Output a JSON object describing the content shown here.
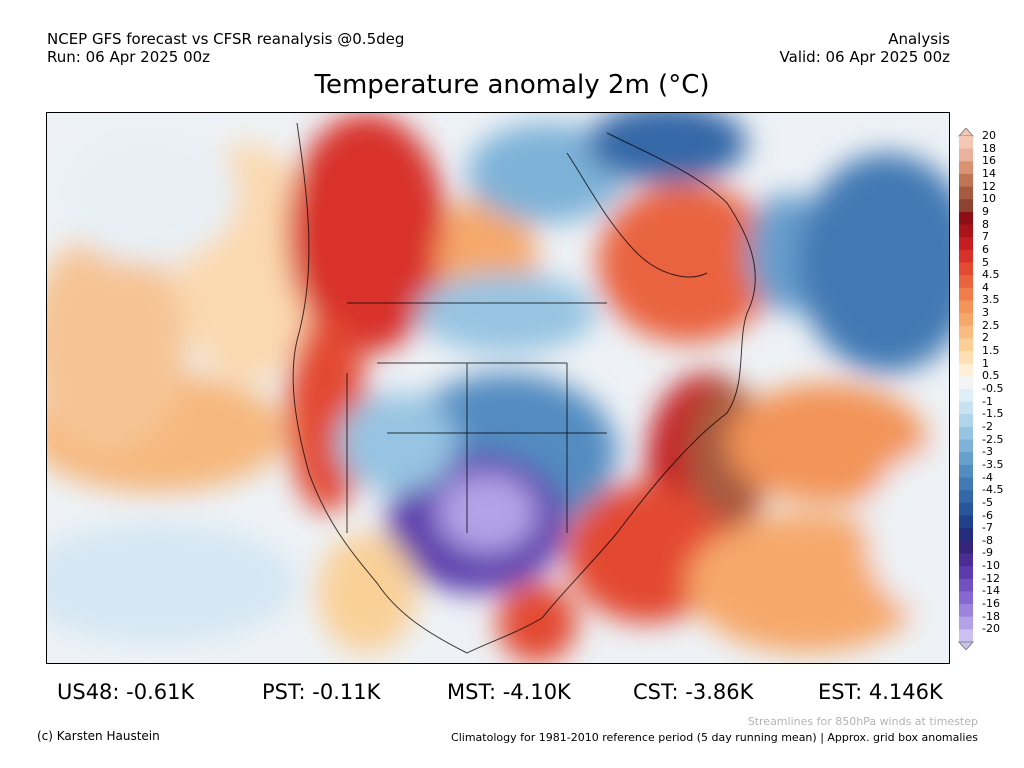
{
  "header": {
    "left_line1": "NCEP GFS forecast vs CFSR reanalysis @0.5deg",
    "left_line2": "Run: 06 Apr 2025 00z",
    "right_line1": "Analysis",
    "right_line2": "Valid: 06 Apr 2025 00z"
  },
  "title": "Temperature anomaly 2m (°C)",
  "colorbar": {
    "labels": [
      "20",
      "18",
      "16",
      "14",
      "12",
      "10",
      "9",
      "8",
      "7",
      "6",
      "5",
      "4.5",
      "4",
      "3.5",
      "3",
      "2.5",
      "2",
      "1.5",
      "1",
      "0.5",
      "-0.5",
      "-1",
      "-1.5",
      "-2",
      "-2.5",
      "-3",
      "-3.5",
      "-4",
      "-4.5",
      "-5",
      "-6",
      "-7",
      "-8",
      "-9",
      "-10",
      "-12",
      "-14",
      "-16",
      "-18",
      "-20"
    ],
    "colors": [
      "#f4c6b4",
      "#eab29c",
      "#d99474",
      "#c07456",
      "#a65a40",
      "#8c4430",
      "#8b0f14",
      "#a8141a",
      "#c41e22",
      "#d8302a",
      "#e34a32",
      "#ea6440",
      "#ef7c4a",
      "#f39458",
      "#f6a86a",
      "#f8bc80",
      "#fad098",
      "#fce0b4",
      "#fdf0d6",
      "#f4f4f4",
      "#e0eef7",
      "#c8e2f1",
      "#b0d4ea",
      "#96c4e2",
      "#7eb2d8",
      "#679fcd",
      "#538cc1",
      "#4279b4",
      "#3467a7",
      "#29559b",
      "#21418a",
      "#262c7c",
      "#34247a",
      "#4a2e94",
      "#5c3cac",
      "#7151c0",
      "#8668d0",
      "#9c84dd",
      "#b4a2e8",
      "#cac0f2"
    ]
  },
  "stats": [
    {
      "label": "US48: -0.61K"
    },
    {
      "label": "PST: -0.11K"
    },
    {
      "label": "MST: -4.10K"
    },
    {
      "label": "CST: -3.86K"
    },
    {
      "label": "EST: 4.146K"
    }
  ],
  "footer": {
    "copyright": "(c) Karsten Haustein",
    "streamlines": "Streamlines for 850hPa winds at timestep",
    "climatology": "Climatology for 1981-2010 reference period (5 day running mean) | Approx. grid box anomalies"
  }
}
